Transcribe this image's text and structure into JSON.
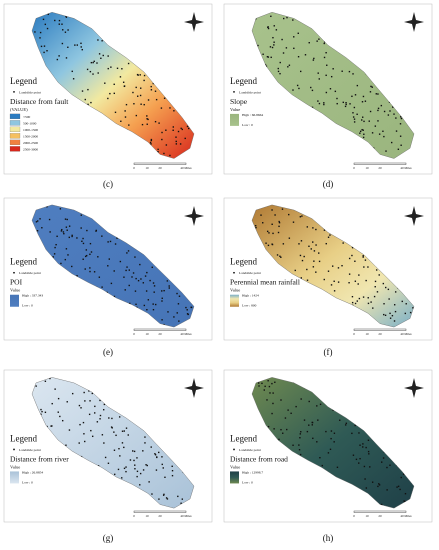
{
  "panels": [
    {
      "caption": "(c)",
      "legend": "Legend",
      "point_label": "Landslide point",
      "layer": "Distance from fault",
      "subtitle": "(VALUE)",
      "items": [
        "<500",
        "500-1000",
        "1000-1500",
        "1500-2000",
        "2000-2500",
        "2500-3000"
      ],
      "scale": [
        "0",
        "10",
        "20",
        "40 Miles"
      ]
    },
    {
      "caption": "(d)",
      "legend": "Legend",
      "point_label": "Landslide point",
      "layer": "Slope",
      "subtitle": "Value",
      "items": [
        "High : 66.8664",
        "Low : 0"
      ],
      "scale": [
        "0",
        "10",
        "20",
        "40 Miles"
      ]
    },
    {
      "caption": "(e)",
      "legend": "Legend",
      "point_label": "Landslide point",
      "layer": "POI",
      "subtitle": "Value",
      "items": [
        "High : 337.343",
        "Low : 0"
      ],
      "scale": [
        "0",
        "10",
        "20",
        "40 Miles"
      ]
    },
    {
      "caption": "(f)",
      "legend": "Legend",
      "point_label": "Landslide point",
      "layer": "Perennial mean rainfall",
      "subtitle": "Value",
      "items": [
        "High : 1424",
        "Low : 800"
      ],
      "scale": [
        "0",
        "10",
        "20",
        "40 Miles"
      ]
    },
    {
      "caption": "(g)",
      "legend": "Legend",
      "point_label": "Landslide point",
      "layer": "Distance from river",
      "subtitle": "Value",
      "items": [
        "High : 26.8854",
        "Low : 0"
      ],
      "scale": [
        "0",
        "10",
        "20",
        "40 Miles"
      ]
    },
    {
      "caption": "(h)",
      "legend": "Legend",
      "point_label": "Landslide point",
      "layer": "Distance from road",
      "subtitle": "Value",
      "items": [
        "High : 12998.7",
        "Low : 0"
      ],
      "scale": [
        "0",
        "10",
        "20",
        "40 Miles"
      ]
    }
  ]
}
